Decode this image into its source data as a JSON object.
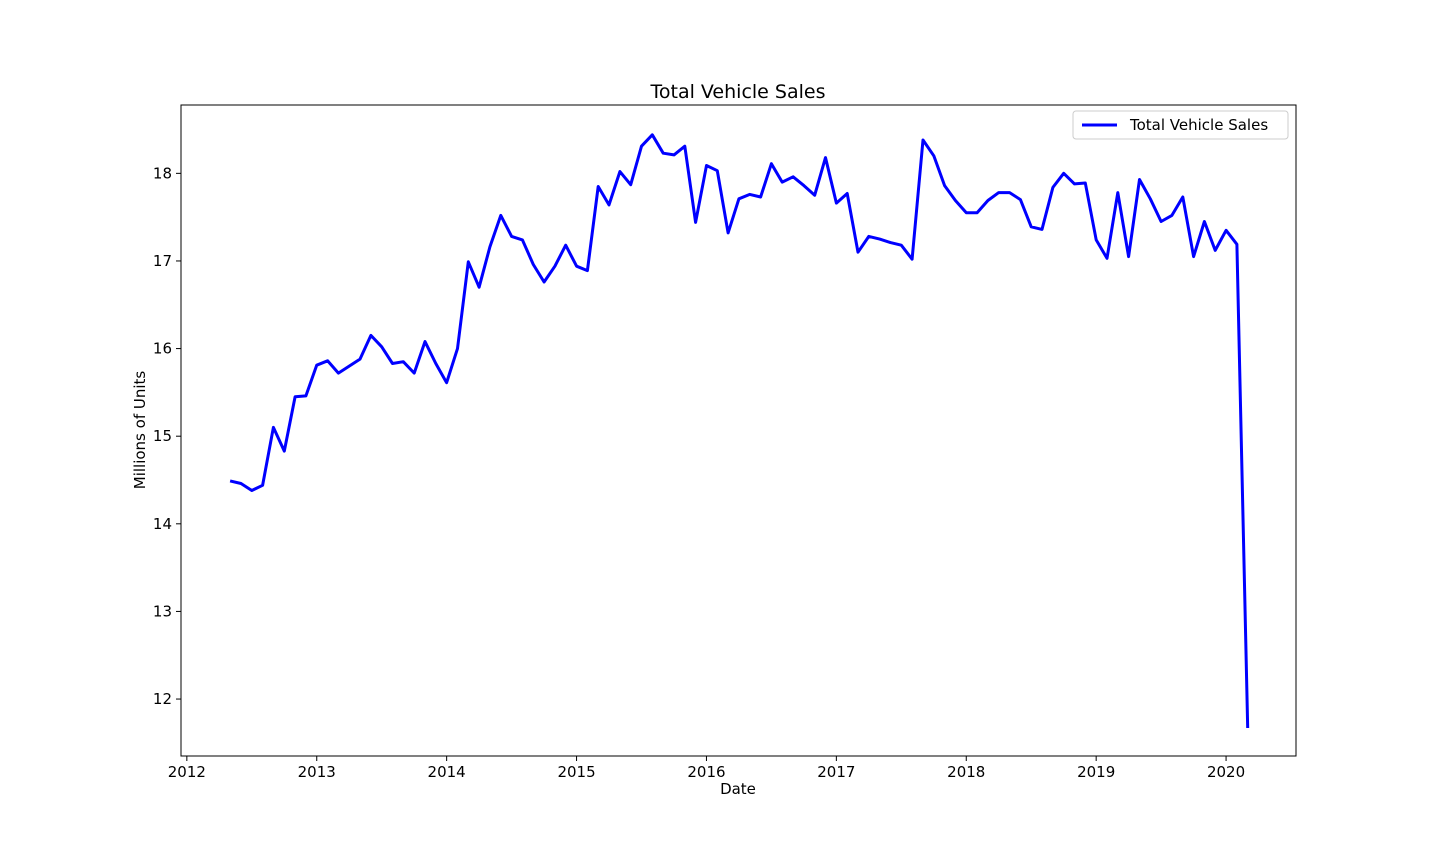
{
  "chart_data": {
    "type": "line",
    "title": "Total Vehicle Sales",
    "xlabel": "Date",
    "ylabel": "Millions of Units",
    "x_ticks": [
      "2012",
      "2013",
      "2014",
      "2015",
      "2016",
      "2017",
      "2018",
      "2019",
      "2020"
    ],
    "y_ticks": [
      "12",
      "13",
      "14",
      "15",
      "16",
      "17",
      "18"
    ],
    "xlim": [
      "2011-12-15",
      "2020-07-15"
    ],
    "ylim": [
      11.35,
      18.78
    ],
    "grid": false,
    "legend": {
      "placement": "top-right",
      "entries": [
        "Total Vehicle Sales"
      ]
    },
    "colors": {
      "series": "#0000ff",
      "axes": "#000000",
      "background": "#ffffff"
    },
    "series": [
      {
        "name": "Total Vehicle Sales",
        "x": [
          "2012-05",
          "2012-06",
          "2012-07",
          "2012-08",
          "2012-09",
          "2012-10",
          "2012-11",
          "2012-12",
          "2013-01",
          "2013-02",
          "2013-03",
          "2013-04",
          "2013-05",
          "2013-06",
          "2013-07",
          "2013-08",
          "2013-09",
          "2013-10",
          "2013-11",
          "2013-12",
          "2014-01",
          "2014-02",
          "2014-03",
          "2014-04",
          "2014-05",
          "2014-06",
          "2014-07",
          "2014-08",
          "2014-09",
          "2014-10",
          "2014-11",
          "2014-12",
          "2015-01",
          "2015-02",
          "2015-03",
          "2015-04",
          "2015-05",
          "2015-06",
          "2015-07",
          "2015-08",
          "2015-09",
          "2015-10",
          "2015-11",
          "2015-12",
          "2016-01",
          "2016-02",
          "2016-03",
          "2016-04",
          "2016-05",
          "2016-06",
          "2016-07",
          "2016-08",
          "2016-09",
          "2016-10",
          "2016-11",
          "2016-12",
          "2017-01",
          "2017-02",
          "2017-03",
          "2017-04",
          "2017-05",
          "2017-06",
          "2017-07",
          "2017-08",
          "2017-09",
          "2017-10",
          "2017-11",
          "2017-12",
          "2018-01",
          "2018-02",
          "2018-03",
          "2018-04",
          "2018-05",
          "2018-06",
          "2018-07",
          "2018-08",
          "2018-09",
          "2018-10",
          "2018-11",
          "2018-12",
          "2019-01",
          "2019-02",
          "2019-03",
          "2019-04",
          "2019-05",
          "2019-06",
          "2019-07",
          "2019-08",
          "2019-09",
          "2019-10",
          "2019-11",
          "2019-12",
          "2020-01",
          "2020-02",
          "2020-03"
        ],
        "values": [
          14.49,
          14.46,
          14.38,
          14.44,
          15.1,
          14.83,
          15.45,
          15.46,
          15.81,
          15.86,
          15.72,
          15.8,
          15.88,
          16.15,
          16.02,
          15.83,
          15.85,
          15.72,
          16.08,
          15.83,
          15.61,
          16.0,
          16.99,
          16.7,
          17.16,
          17.52,
          17.28,
          17.24,
          16.96,
          16.76,
          16.94,
          17.18,
          16.94,
          16.89,
          17.85,
          17.64,
          18.02,
          17.87,
          18.31,
          18.44,
          18.23,
          18.21,
          18.31,
          17.44,
          18.09,
          18.03,
          17.32,
          17.71,
          17.76,
          17.73,
          18.11,
          17.9,
          17.96,
          17.86,
          17.75,
          18.18,
          17.66,
          17.77,
          17.1,
          17.28,
          17.25,
          17.21,
          17.18,
          17.02,
          18.38,
          18.2,
          17.86,
          17.69,
          17.55,
          17.55,
          17.69,
          17.78,
          17.78,
          17.7,
          17.39,
          17.36,
          17.84,
          18.0,
          17.88,
          17.89,
          17.24,
          17.03,
          17.78,
          17.05,
          17.93,
          17.71,
          17.45,
          17.52,
          17.73,
          17.05,
          17.45,
          17.12,
          17.35,
          17.19,
          11.67
        ]
      }
    ]
  }
}
